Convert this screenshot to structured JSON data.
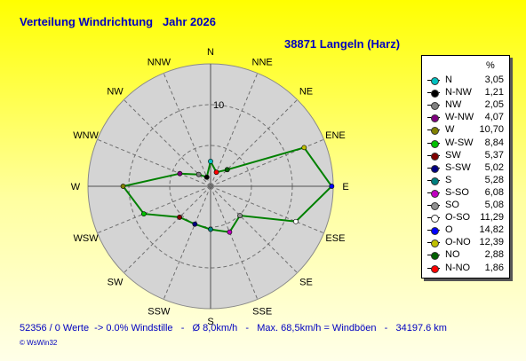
{
  "title": "Verteilung Windrichtung   Jahr 2026",
  "subtitle": "38871 Langeln (Harz)",
  "legend": {
    "header": "%"
  },
  "footer": "52356 / 0 Werte  -> 0.0% Windstille   -   Ø 8,0km/h   -   Max. 68,5km/h = Windböen   -   34197.6 km",
  "brand": "© WsWin32",
  "colors": {
    "line": "#008000",
    "plot_bg": "#d4d4d4",
    "grid": "#707070"
  },
  "chart_data": {
    "type": "radar",
    "radial_tick_label": "10",
    "radial_max": 15,
    "directions": [
      "N",
      "NNE",
      "NE",
      "ENE",
      "E",
      "ESE",
      "SE",
      "SSE",
      "S",
      "SSW",
      "SW",
      "WSW",
      "W",
      "WNW",
      "NW",
      "NNW"
    ],
    "series": [
      {
        "label": "N",
        "value": 3.05,
        "display": "3,05",
        "color": "#00c0c0"
      },
      {
        "label": "N-NW",
        "value": 1.21,
        "display": "1,21",
        "color": "#000000"
      },
      {
        "label": "NW",
        "value": 2.05,
        "display": "2,05",
        "color": "#808080"
      },
      {
        "label": "W-NW",
        "value": 4.07,
        "display": "4,07",
        "color": "#800080"
      },
      {
        "label": "W",
        "value": 10.7,
        "display": "10,70",
        "color": "#808000"
      },
      {
        "label": "W-SW",
        "value": 8.84,
        "display": "8,84",
        "color": "#00c000"
      },
      {
        "label": "SW",
        "value": 5.37,
        "display": "5,37",
        "color": "#800000"
      },
      {
        "label": "S-SW",
        "value": 5.02,
        "display": "5,02",
        "color": "#000080"
      },
      {
        "label": "S",
        "value": 5.28,
        "display": "5,28",
        "color": "#008080"
      },
      {
        "label": "S-SO",
        "value": 6.08,
        "display": "6,08",
        "color": "#c000c0"
      },
      {
        "label": "SO",
        "value": 5.08,
        "display": "5,08",
        "color": "#909090"
      },
      {
        "label": "O-SO",
        "value": 11.29,
        "display": "11,29",
        "color": "#ffffff"
      },
      {
        "label": "O",
        "value": 14.82,
        "display": "14,82",
        "color": "#0000ff"
      },
      {
        "label": "O-NO",
        "value": 12.39,
        "display": "12,39",
        "color": "#c0c000"
      },
      {
        "label": "NO",
        "value": 2.88,
        "display": "2,88",
        "color": "#006000"
      },
      {
        "label": "N-NO",
        "value": 1.86,
        "display": "1,86",
        "color": "#ff0000"
      }
    ],
    "plot_order": [
      "N",
      "N-NO",
      "NO",
      "O-NO",
      "O",
      "O-SO",
      "SO",
      "S-SO",
      "S",
      "S-SW",
      "SW",
      "W-SW",
      "W",
      "W-NW",
      "NW",
      "N-NW"
    ]
  }
}
